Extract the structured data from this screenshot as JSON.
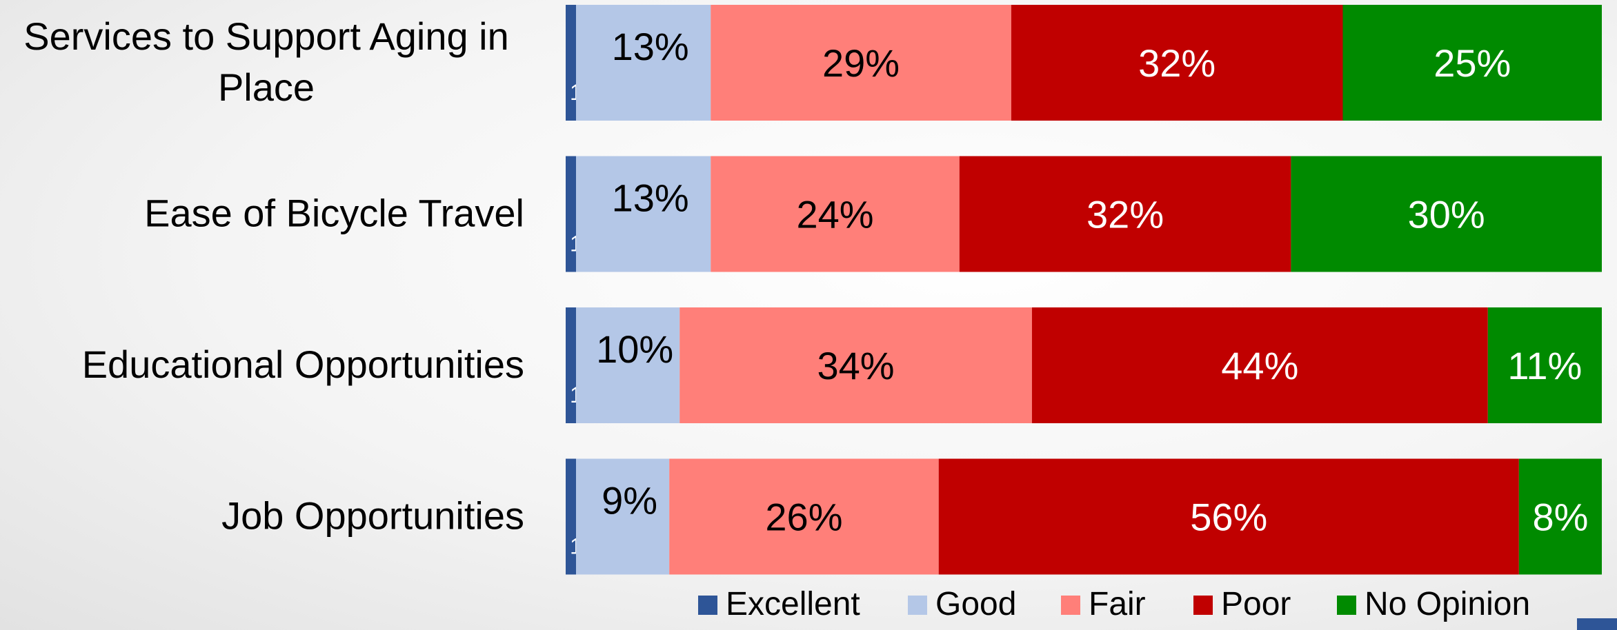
{
  "chart_data": {
    "type": "bar",
    "orientation": "horizontal",
    "stacked": true,
    "title": "",
    "xlabel": "",
    "ylabel": "",
    "xlim": [
      0,
      100
    ],
    "grid": false,
    "legend_position": "bottom",
    "categories": [
      "Services to Support Aging in Place",
      "Ease of Bicycle Travel",
      "Educational Opportunities",
      "Job Opportunities"
    ],
    "category_lines": [
      [
        "Services to Support Aging in",
        "Place"
      ],
      [
        "Ease of Bicycle Travel"
      ],
      [
        "Educational Opportunities"
      ],
      [
        "Job Opportunities"
      ]
    ],
    "series": [
      {
        "name": "Excellent",
        "color": "#2e5597",
        "label_color": "#ffffff",
        "values": [
          1,
          1,
          1,
          1
        ]
      },
      {
        "name": "Good",
        "color": "#b4c7e7",
        "label_color": "#000000",
        "values": [
          13,
          13,
          10,
          9
        ]
      },
      {
        "name": "Fair",
        "color": "#ff7f79",
        "label_color": "#000000",
        "values": [
          29,
          24,
          34,
          26
        ]
      },
      {
        "name": "Poor",
        "color": "#c00000",
        "label_color": "#ffffff",
        "values": [
          32,
          32,
          44,
          56
        ]
      },
      {
        "name": "No Opinion",
        "color": "#008a00",
        "label_color": "#ffffff",
        "values": [
          25,
          30,
          11,
          8
        ]
      }
    ]
  }
}
